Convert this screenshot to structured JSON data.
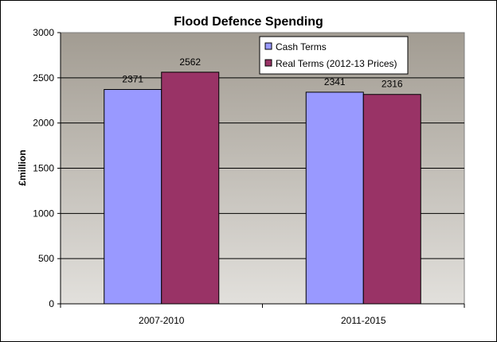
{
  "chart_data": {
    "type": "bar",
    "title": "Flood Defence Spending",
    "ylabel": "£million",
    "xlabel": "",
    "categories": [
      "2007-2010",
      "2011-2015"
    ],
    "series": [
      {
        "name": "Cash Terms",
        "values": [
          2371,
          2341
        ],
        "color": "#9999ff"
      },
      {
        "name": "Real Terms (2012-13 Prices)",
        "values": [
          2562,
          2316
        ],
        "color": "#993366"
      }
    ],
    "ylim": [
      0,
      3000
    ],
    "yticks": [
      0,
      500,
      1000,
      1500,
      2000,
      2500,
      3000
    ],
    "grid": true,
    "legend": "top-right",
    "plot_background": "#c0c0c0"
  }
}
